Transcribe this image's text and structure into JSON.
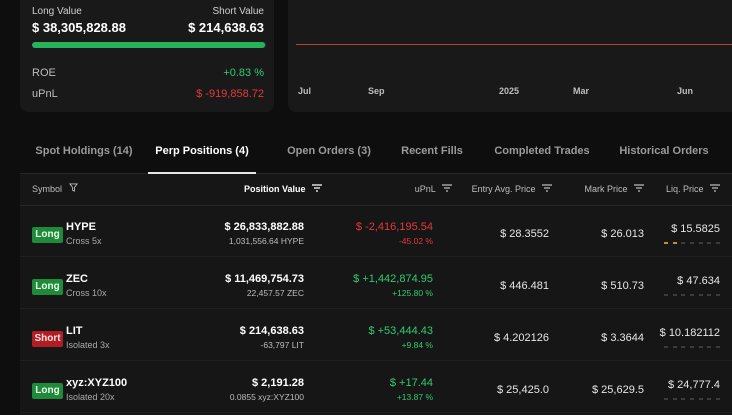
{
  "summary": {
    "long_label": "Long Value",
    "short_label": "Short Value",
    "long_value": "$ 38,305,828.88",
    "short_value": "$ 214,638.63",
    "long_share": 0.9944,
    "roe_label": "ROE",
    "roe_value": "+0.83 %",
    "upnl_label": "uPnL",
    "upnl_value": "$ -919,858.72"
  },
  "chart": {
    "x_labels": [
      "Jul",
      "Sep",
      "2025",
      "Mar",
      "Jun"
    ],
    "line_color": "#b5452a"
  },
  "tabs": [
    {
      "label": "Spot Holdings (14)",
      "active": false
    },
    {
      "label": "Perp Positions (4)",
      "active": true
    },
    {
      "label": "Open Orders (3)",
      "active": false
    },
    {
      "label": "Recent Fills",
      "active": false
    },
    {
      "label": "Completed Trades",
      "active": false
    },
    {
      "label": "Historical Orders",
      "active": false
    }
  ],
  "table": {
    "headers": {
      "symbol": "Symbol",
      "position_value": "Position Value",
      "upnl": "uPnL",
      "entry": "Entry Avg. Price",
      "mark": "Mark Price",
      "liq": "Liq. Price"
    },
    "rows": [
      {
        "side": "Long",
        "symbol": "HYPE",
        "margin": "Cross 5x",
        "position_value": "$ 26,833,882.88",
        "size": "1,031,556.64 HYPE",
        "upnl": "$ -2,416,195.54",
        "upnl_pct": "-45.02 %",
        "upnl_positive": false,
        "entry": "$ 28.3552",
        "mark": "$ 26.013",
        "liq": "$ 15.5825",
        "risk_level": 2
      },
      {
        "side": "Long",
        "symbol": "ZEC",
        "margin": "Cross 10x",
        "position_value": "$ 11,469,754.73",
        "size": "22,457.57 ZEC",
        "upnl": "$ +1,442,874.95",
        "upnl_pct": "+125.80 %",
        "upnl_positive": true,
        "entry": "$ 446.481",
        "mark": "$ 510.73",
        "liq": "$ 47.634",
        "risk_level": 0
      },
      {
        "side": "Short",
        "symbol": "LIT",
        "margin": "Isolated 3x",
        "position_value": "$ 214,638.63",
        "size": "-63,797 LIT",
        "upnl": "$ +53,444.43",
        "upnl_pct": "+9.84 %",
        "upnl_positive": true,
        "entry": "$ 4.202126",
        "mark": "$ 3.3644",
        "liq": "$ 10.182112",
        "risk_level": 0
      },
      {
        "side": "Long",
        "symbol": "xyz:XYZ100",
        "margin": "Isolated 20x",
        "position_value": "$ 2,191.28",
        "size": "0.0855 xyz:XYZ100",
        "upnl": "$ +17.44",
        "upnl_pct": "+13.87 %",
        "upnl_positive": true,
        "entry": "$ 25,425.0",
        "mark": "$ 25,629.5",
        "liq": "$ 24,777.4",
        "risk_level": 0
      }
    ]
  },
  "colors": {
    "positive": "#2ecc71",
    "negative": "#e5383b",
    "long_badge": "#1f8a3a",
    "short_badge": "#b01e24",
    "risk_active": "#b9962a"
  }
}
